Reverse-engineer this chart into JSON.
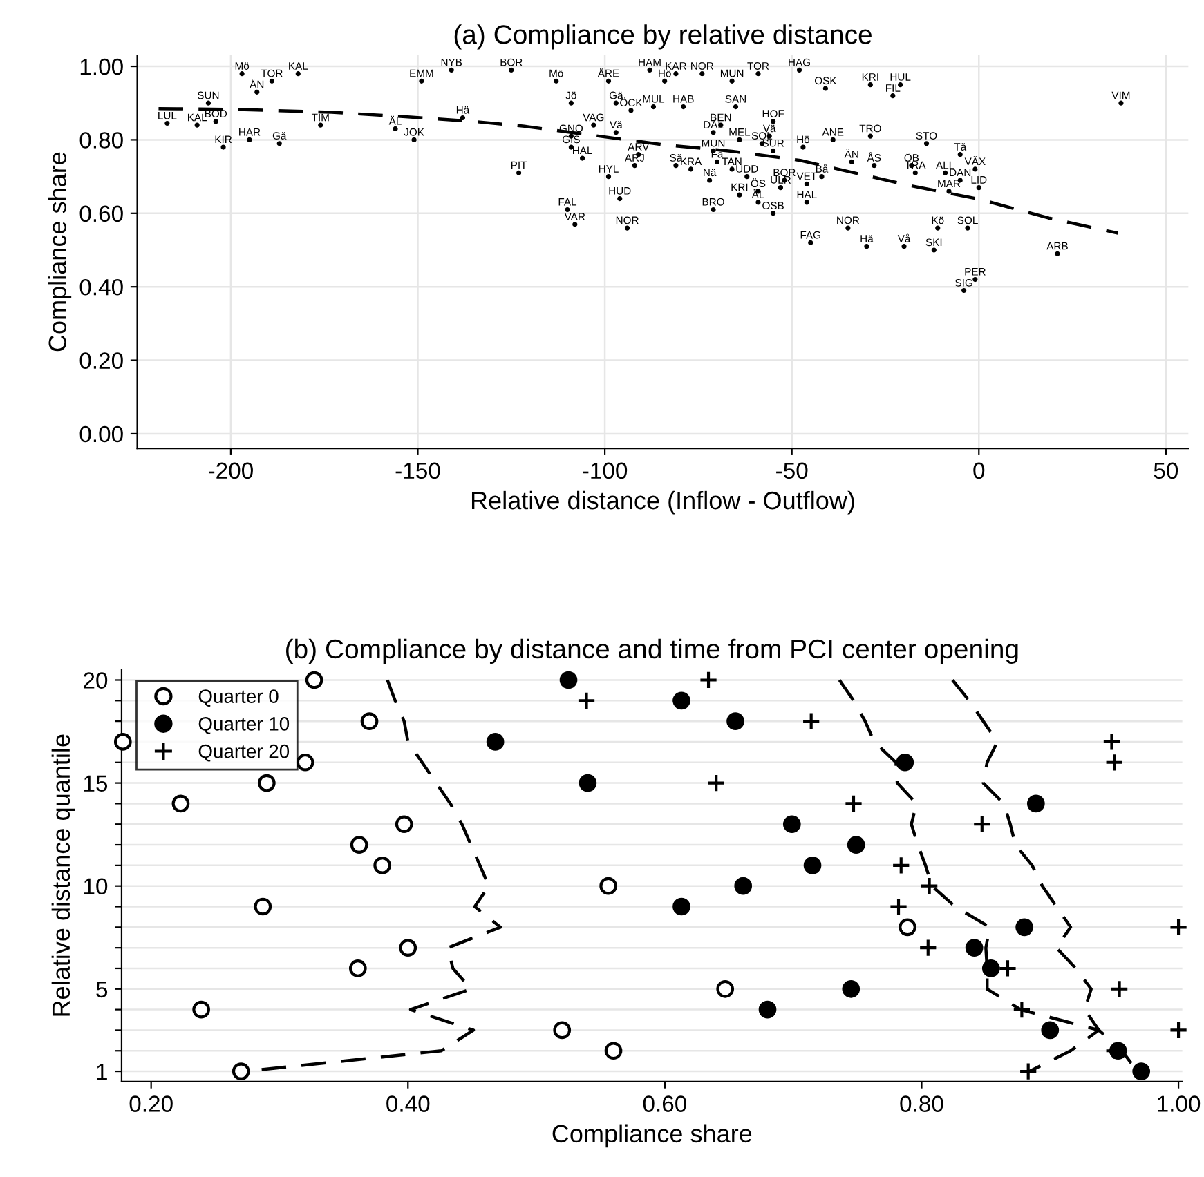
{
  "chart_data": [
    {
      "type": "scatter",
      "title": "(a) Compliance by relative distance",
      "xlabel": "Relative distance (Inflow - Outflow)",
      "ylabel": "Compliance share",
      "xlim": [
        -225,
        56
      ],
      "ylim": [
        -0.04,
        1.03
      ],
      "xticks": [
        {
          "value": -200,
          "label": "-200"
        },
        {
          "value": -150,
          "label": "-150"
        },
        {
          "value": -100,
          "label": "-100"
        },
        {
          "value": -50,
          "label": "-50"
        },
        0,
        50
      ],
      "yticks": [
        {
          "value": 0,
          "label": "0.00"
        },
        {
          "value": 0.2,
          "label": "0.20"
        },
        {
          "value": 0.4,
          "label": "0.40"
        },
        {
          "value": 0.6,
          "label": "0.60"
        },
        {
          "value": 0.8,
          "label": "0.80"
        },
        {
          "value": 1,
          "label": "1.00"
        }
      ],
      "grid": true,
      "legend": false,
      "series": [
        {
          "marker": "circle",
          "color": "#000000",
          "x": [
            -197,
            -182,
            -189,
            -193,
            -217,
            -206,
            -209,
            -204,
            -202,
            -195,
            -187,
            -176,
            -149,
            -141,
            -125,
            -156,
            -151,
            -138,
            -123,
            -113,
            -99,
            -88,
            -84,
            -81,
            -74,
            -66,
            -59,
            -48,
            -41,
            -109,
            -97,
            -93,
            -87,
            -79,
            -65,
            -69,
            -55,
            -71,
            -64,
            -56,
            -58,
            -103,
            -97,
            -109,
            -109,
            -106,
            -91,
            -92,
            -99,
            -81,
            -77,
            -71,
            -70,
            -55,
            -72,
            -66,
            -62,
            -52,
            -53,
            -46,
            -64,
            -59,
            -59,
            -55,
            -71,
            -46,
            -96,
            -94,
            -110,
            -108,
            -35,
            -45,
            -47,
            -39,
            -29,
            -21,
            -23,
            -29,
            -14,
            -34,
            -28,
            -18,
            -17,
            -9,
            -5,
            -1,
            -5,
            0,
            -8,
            -42,
            -11,
            -3,
            -30,
            -20,
            -12,
            -1,
            -4,
            21,
            38
          ],
          "values": [
            0.98,
            0.98,
            0.96,
            0.93,
            0.845,
            0.9,
            0.84,
            0.85,
            0.78,
            0.8,
            0.79,
            0.84,
            0.96,
            0.99,
            0.99,
            0.83,
            0.8,
            0.86,
            0.71,
            0.96,
            0.96,
            0.99,
            0.96,
            0.98,
            0.98,
            0.96,
            0.98,
            0.99,
            0.94,
            0.9,
            0.9,
            0.88,
            0.89,
            0.89,
            0.89,
            0.84,
            0.85,
            0.82,
            0.8,
            0.81,
            0.79,
            0.84,
            0.82,
            0.81,
            0.78,
            0.75,
            0.76,
            0.73,
            0.7,
            0.73,
            0.72,
            0.77,
            0.74,
            0.77,
            0.69,
            0.72,
            0.7,
            0.69,
            0.67,
            0.68,
            0.65,
            0.66,
            0.63,
            0.6,
            0.61,
            0.63,
            0.64,
            0.56,
            0.61,
            0.57,
            0.56,
            0.52,
            0.78,
            0.8,
            0.95,
            0.95,
            0.92,
            0.81,
            0.79,
            0.74,
            0.73,
            0.73,
            0.71,
            0.71,
            0.76,
            0.72,
            0.69,
            0.67,
            0.66,
            0.7,
            0.56,
            0.56,
            0.51,
            0.51,
            0.5,
            0.42,
            0.39,
            0.49,
            0.9
          ],
          "value_labels": [
            "Mö",
            "KAL",
            "TOR",
            "ÅN",
            "LUL",
            "SUN",
            "KAL",
            "BOD",
            "KIR",
            "HAR",
            "Gä",
            "TIM",
            "EMM",
            "NYB",
            "BOR",
            "ÄL",
            "JOK",
            "Hä",
            "PIT",
            "Mö",
            "ÅRE",
            "HAM",
            "Hö",
            "KAR",
            "NOR",
            "MUN",
            "TOR",
            "HAG",
            "OSK",
            "Jö",
            "Gä",
            "ÖCK",
            "MUL",
            "HAB",
            "SAN",
            "BEN",
            "HOF",
            "DAL",
            "MEL",
            "Vä",
            "SOL",
            "VAG",
            "Vä",
            "GNO",
            "GIS",
            "HAL",
            "ARV",
            "ARJ",
            "HYL",
            "Sä",
            "KRA",
            "MUN",
            "Fä",
            "SUR",
            "Nä",
            "TAN",
            "UDD",
            "BOR",
            "ULR",
            "VET",
            "KRI",
            "ÖS",
            "ÄL",
            "OSB",
            "BRO",
            "HAL",
            "HUD",
            "NOR",
            "FAL",
            "VAR",
            "NOR",
            "FAG",
            "Hö",
            "ANE",
            "KRI",
            "HUL",
            "FIL",
            "TRO",
            "STO",
            "ÄN",
            "ÅS",
            "ÖB",
            "TRA",
            "ALL",
            "Tä",
            "VÄX",
            "DAN",
            "LID",
            "MAR",
            "Bå",
            "Kö",
            "SOL",
            "Hä",
            "Vå",
            "SKI",
            "PER",
            "SIG",
            "ARB",
            "VIM"
          ]
        },
        {
          "type": "line",
          "line_style": "dashed",
          "color": "#000000",
          "x": [
            -219.3,
            -199,
            -173,
            -152,
            -135,
            -121.5,
            -103,
            -84.6,
            -66,
            -47.7,
            -36.6,
            -18.2,
            0.3,
            18.7,
            37.2
          ],
          "values": [
            0.885,
            0.883,
            0.875,
            0.862,
            0.85,
            0.837,
            0.812,
            0.787,
            0.769,
            0.744,
            0.718,
            0.675,
            0.638,
            0.587,
            0.546
          ]
        }
      ]
    },
    {
      "type": "scatter",
      "title": "(b) Compliance by distance and time from PCI center opening",
      "xlabel": "Compliance share",
      "ylabel": "Relative distance quantile",
      "xlim": [
        0.177,
        1.003
      ],
      "ylim": [
        0.5,
        20.5
      ],
      "xticks": [
        {
          "value": 0.2,
          "label": "0.20"
        },
        {
          "value": 0.4,
          "label": "0.40"
        },
        {
          "value": 0.6,
          "label": "0.60"
        },
        {
          "value": 0.8,
          "label": "0.80"
        },
        {
          "value": 1,
          "label": "1.00"
        }
      ],
      "yticks": [
        1,
        {
          "value": 2,
          "label": null
        },
        {
          "value": 3,
          "label": null
        },
        {
          "value": 4,
          "label": null
        },
        5,
        {
          "value": 6,
          "label": null
        },
        {
          "value": 7,
          "label": null
        },
        {
          "value": 8,
          "label": null
        },
        {
          "value": 9,
          "label": null
        },
        10,
        {
          "value": 11,
          "label": null
        },
        {
          "value": 12,
          "label": null
        },
        {
          "value": 13,
          "label": null
        },
        {
          "value": 14,
          "label": null
        },
        15,
        {
          "value": 16,
          "label": null
        },
        {
          "value": 17,
          "label": null
        },
        {
          "value": 18,
          "label": null
        },
        {
          "value": 19,
          "label": null
        },
        20
      ],
      "grid": "y",
      "legend": "top left",
      "series": [
        {
          "type": "line",
          "line_style": "dashed",
          "color": "#000000",
          "x": [
            0.384,
            0.39,
            0.397,
            0.4,
            0.411,
            0.422,
            0.433,
            0.442,
            0.449,
            0.456,
            0.463,
            0.452,
            0.472,
            0.431,
            0.435,
            0.449,
            0.402,
            0.451,
            0.426,
            0.273
          ],
          "values": [
            20,
            19,
            18,
            17,
            16,
            15,
            14,
            13,
            12,
            11,
            10,
            9,
            8,
            7,
            6,
            5,
            4,
            3,
            2,
            1
          ]
        },
        {
          "type": "line",
          "line_style": "dashed",
          "color": "#000000",
          "x": [
            0.736,
            0.747,
            0.756,
            0.763,
            0.78,
            0.781,
            0.796,
            0.792,
            0.797,
            0.803,
            0.808,
            0.826,
            0.853,
            0.85,
            0.851,
            0.851,
            0.877,
            0.938,
            0.916,
            0.884
          ],
          "values": [
            20,
            19,
            18,
            17,
            16,
            15,
            14,
            13,
            12,
            11,
            10,
            9,
            8,
            7,
            6,
            5,
            4,
            3,
            2,
            1
          ]
        },
        {
          "type": "line",
          "line_style": "dashed",
          "color": "#000000",
          "x": [
            0.824,
            0.837,
            0.848,
            0.859,
            0.851,
            0.848,
            0.864,
            0.869,
            0.873,
            0.886,
            0.894,
            0.905,
            0.916,
            0.905,
            0.92,
            0.932,
            0.927,
            0.938,
            0.956,
            0.968
          ],
          "values": [
            20,
            19,
            18,
            17,
            16,
            15,
            14,
            13,
            12,
            11,
            10,
            9,
            8,
            7,
            6,
            5,
            4,
            3,
            2,
            1
          ]
        },
        {
          "name": "Quarter 0",
          "marker": "circle",
          "color": "#ffffff",
          "x": [
            0.327,
            0.37,
            0.178,
            0.32,
            0.29,
            0.223,
            0.397,
            0.362,
            0.38,
            0.556,
            0.287,
            0.789,
            0.4,
            0.361,
            0.647,
            0.239,
            0.52,
            0.56,
            0.27
          ],
          "values": [
            20,
            18,
            17,
            16,
            15,
            14,
            13,
            12,
            11,
            10,
            9,
            8,
            7,
            6,
            5,
            4,
            3,
            2,
            1
          ]
        },
        {
          "name": "Quarter 10",
          "marker": "circle",
          "color": "#000000",
          "x": [
            0.525,
            0.613,
            0.655,
            0.468,
            0.787,
            0.54,
            0.889,
            0.699,
            0.749,
            0.715,
            0.661,
            0.613,
            0.88,
            0.841,
            0.854,
            0.745,
            0.68,
            0.9,
            0.953,
            0.971
          ],
          "values": [
            20,
            19,
            18,
            17,
            16,
            15,
            14,
            13,
            12,
            11,
            10,
            9,
            8,
            7,
            6,
            5,
            4,
            3,
            2,
            1
          ]
        },
        {
          "name": "Quarter 20",
          "marker": "cross",
          "color": "#000000",
          "x": [
            0.634,
            0.539,
            0.714,
            0.948,
            0.95,
            0.64,
            0.747,
            0.847,
            0.784,
            0.806,
            0.782,
            1.0,
            0.805,
            0.867,
            0.954,
            0.878,
            1.0,
            0.95,
            0.883
          ],
          "values": [
            20,
            19,
            18,
            17,
            16,
            15,
            14,
            13,
            11,
            10,
            9,
            8,
            7,
            6,
            5,
            4,
            3,
            2,
            1
          ]
        }
      ]
    }
  ]
}
